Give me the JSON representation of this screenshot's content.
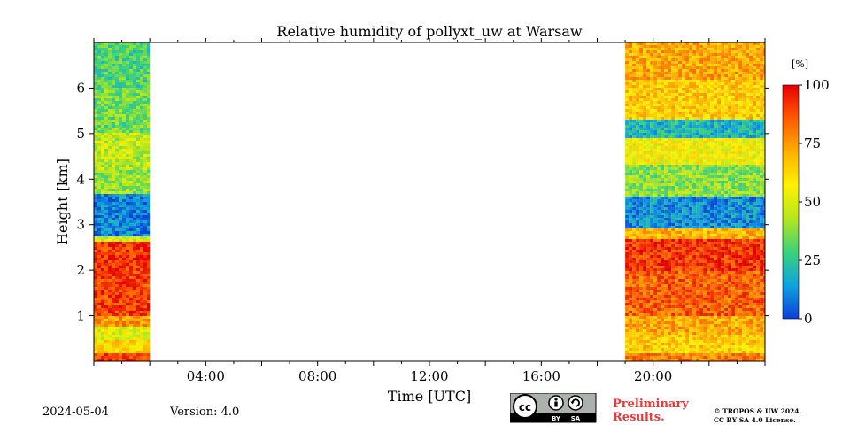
{
  "chart_data": {
    "type": "heatmap",
    "title": "Relative humidity of pollyxt_uw at Warsaw",
    "xlabel": "Time [UTC]",
    "ylabel": "Height [km]",
    "xlim": [
      0,
      24
    ],
    "ylim": [
      0,
      7
    ],
    "x_ticks": [
      {
        "value": 4,
        "label": "04:00"
      },
      {
        "value": 8,
        "label": "08:00"
      },
      {
        "value": 12,
        "label": "12:00"
      },
      {
        "value": 16,
        "label": "16:00"
      },
      {
        "value": 20,
        "label": "20:00"
      }
    ],
    "y_ticks": [
      {
        "value": 1,
        "label": "1"
      },
      {
        "value": 2,
        "label": "2"
      },
      {
        "value": 3,
        "label": "3"
      },
      {
        "value": 4,
        "label": "4"
      },
      {
        "value": 5,
        "label": "5"
      },
      {
        "value": 6,
        "label": "6"
      }
    ],
    "colorbar": {
      "unit": "[%]",
      "min": 0,
      "max": 100,
      "ticks": [
        {
          "value": 0,
          "label": "0"
        },
        {
          "value": 25,
          "label": "25"
        },
        {
          "value": 50,
          "label": "50"
        },
        {
          "value": 75,
          "label": "75"
        },
        {
          "value": 100,
          "label": "100"
        }
      ],
      "colormap": [
        "#0a3fd8",
        "#0fa3e0",
        "#3cd27a",
        "#b4e61e",
        "#fff200",
        "#ffb000",
        "#ff5a00",
        "#e60000"
      ]
    },
    "data_segments": [
      {
        "name": "night-early",
        "t_start": 0.0,
        "t_end": 2.0,
        "profile": [
          {
            "h_min": 0.0,
            "h_max": 0.15,
            "rh": 90
          },
          {
            "h_min": 0.15,
            "h_max": 0.45,
            "rh": 62
          },
          {
            "h_min": 0.45,
            "h_max": 0.75,
            "rh": 52
          },
          {
            "h_min": 0.75,
            "h_max": 1.0,
            "rh": 75
          },
          {
            "h_min": 1.0,
            "h_max": 2.0,
            "rh": 90
          },
          {
            "h_min": 2.0,
            "h_max": 2.6,
            "rh": 92
          },
          {
            "h_min": 2.6,
            "h_max": 2.75,
            "rh": 50
          },
          {
            "h_min": 2.75,
            "h_max": 3.65,
            "rh": 10
          },
          {
            "h_min": 3.65,
            "h_max": 4.2,
            "rh": 40
          },
          {
            "h_min": 4.2,
            "h_max": 5.0,
            "rh": 45
          },
          {
            "h_min": 5.0,
            "h_max": 6.0,
            "rh": 35
          },
          {
            "h_min": 6.0,
            "h_max": 7.0,
            "rh": 30
          }
        ]
      },
      {
        "name": "night-late",
        "t_start": 19.0,
        "t_end": 24.0,
        "profile": [
          {
            "h_min": 0.0,
            "h_max": 0.2,
            "rh": 80
          },
          {
            "h_min": 0.2,
            "h_max": 0.6,
            "rh": 65
          },
          {
            "h_min": 0.6,
            "h_max": 1.0,
            "rh": 72
          },
          {
            "h_min": 1.0,
            "h_max": 2.0,
            "rh": 85
          },
          {
            "h_min": 2.0,
            "h_max": 2.7,
            "rh": 92
          },
          {
            "h_min": 2.7,
            "h_max": 2.9,
            "rh": 70
          },
          {
            "h_min": 2.9,
            "h_max": 3.6,
            "rh": 12
          },
          {
            "h_min": 3.6,
            "h_max": 4.3,
            "rh": 38
          },
          {
            "h_min": 4.3,
            "h_max": 4.9,
            "rh": 55
          },
          {
            "h_min": 4.9,
            "h_max": 5.3,
            "rh": 20
          },
          {
            "h_min": 5.3,
            "h_max": 6.2,
            "rh": 65
          },
          {
            "h_min": 6.2,
            "h_max": 7.0,
            "rh": 72
          }
        ]
      }
    ]
  },
  "footer": {
    "date": "2024-05-04",
    "version": "Version: 4.0",
    "preliminary_line1": "Preliminary",
    "preliminary_line2": "Results.",
    "copyright_line1": "© TROPOS & UW 2024.",
    "copyright_line2": "CC BY SA 4.0 License.",
    "license_by": "BY",
    "license_sa": "SA",
    "license_cc": "cc"
  }
}
